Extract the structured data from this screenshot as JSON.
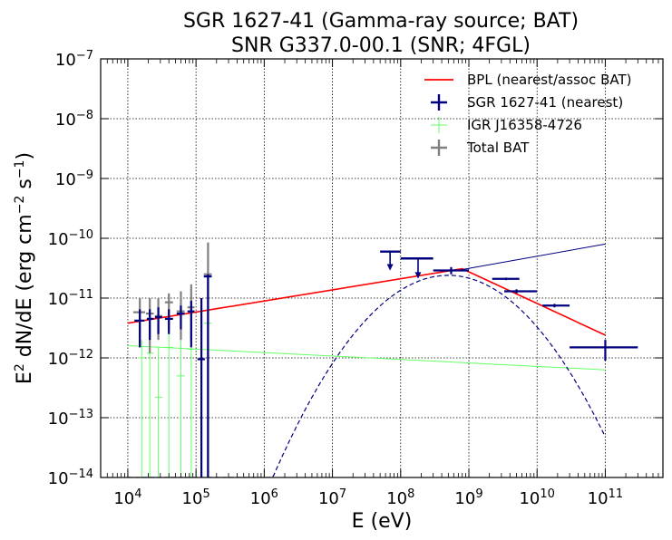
{
  "chart_data": {
    "type": "scatter",
    "title": "SGR 1627-41 (Gamma-ray source; BAT)",
    "subtitle": "SNR G337.0-00.1 (SNR; 4FGL)",
    "xlabel": "E (eV)",
    "ylabel_main": "E",
    "ylabel_sup": "2",
    "ylabel_rest": " dN/dE (erg cm",
    "ylabel_sup2": "−2",
    "ylabel_mid": " s",
    "ylabel_sup3": "−1",
    "ylabel_end": ")",
    "x_scale": "log",
    "y_scale": "log",
    "xlim": [
      4000,
      700000000000
    ],
    "ylim": [
      1e-14,
      1e-07
    ],
    "grid": true,
    "legend_position": "top-right",
    "x_ticks": [
      {
        "value": 10000,
        "base": "10",
        "exp": "4"
      },
      {
        "value": 100000,
        "base": "10",
        "exp": "5"
      },
      {
        "value": 1000000,
        "base": "10",
        "exp": "6"
      },
      {
        "value": 10000000,
        "base": "10",
        "exp": "7"
      },
      {
        "value": 100000000,
        "base": "10",
        "exp": "8"
      },
      {
        "value": 1000000000,
        "base": "10",
        "exp": "9"
      },
      {
        "value": 10000000000,
        "base": "10",
        "exp": "10"
      },
      {
        "value": 100000000000,
        "base": "10",
        "exp": "11"
      }
    ],
    "y_ticks": [
      {
        "value": 1e-14,
        "base": "10",
        "exp": "−14"
      },
      {
        "value": 1e-13,
        "base": "10",
        "exp": "−13"
      },
      {
        "value": 1e-12,
        "base": "10",
        "exp": "−12"
      },
      {
        "value": 1e-11,
        "base": "10",
        "exp": "−11"
      },
      {
        "value": 1e-10,
        "base": "10",
        "exp": "−10"
      },
      {
        "value": 1e-09,
        "base": "10",
        "exp": "−9"
      },
      {
        "value": 1e-08,
        "base": "10",
        "exp": "−8"
      },
      {
        "value": 1e-07,
        "base": "10",
        "exp": "−7"
      }
    ],
    "legend": [
      {
        "label": "BPL (nearest/assoc BAT)",
        "kind": "line",
        "color": "#ff0000"
      },
      {
        "label": "SGR 1627-41 (nearest)",
        "kind": "cross",
        "color": "#000080"
      },
      {
        "label": "IGR J16358-4726",
        "kind": "cross",
        "color": "#66ff66"
      },
      {
        "label": "Total BAT",
        "kind": "cross",
        "color": "#808080"
      }
    ],
    "lines": [
      {
        "name": "BPL (nearest/assoc BAT)",
        "color": "#ff0000",
        "width": 1.6,
        "dash": "",
        "points": [
          [
            10000,
            3.8e-12
          ],
          [
            800000000,
            3.1e-11
          ],
          [
            100000000000,
            2.4e-12
          ]
        ]
      },
      {
        "name": "",
        "color": "#000080",
        "width": 1.0,
        "dash": "",
        "points": [
          [
            800000000,
            3e-11
          ],
          [
            100000000000,
            8e-11
          ]
        ]
      },
      {
        "name": "",
        "color": "#66ff66",
        "width": 1.0,
        "dash": "",
        "points": [
          [
            10000,
            1.6e-12
          ],
          [
            100000000000,
            6.3e-13
          ]
        ]
      }
    ],
    "curve": {
      "color": "#000080",
      "dash": "5,3",
      "width": 1.2,
      "peak_x": 500000000,
      "peak_y": 2.4e-11,
      "width_decades": 1.4,
      "x_from": 10000,
      "x_to": 100000000000
    },
    "series": [
      {
        "name": "IGR J16358-4726",
        "color": "#66ff66",
        "width": 1.0,
        "points": [
          {
            "x": 16000,
            "y": 1e-12,
            "xlo": 14000,
            "xhi": 18000,
            "ylo": 1e-14,
            "yhi": 2e-12
          },
          {
            "x": 21000,
            "y": 1.2e-12,
            "xlo": 19000,
            "xhi": 24000,
            "ylo": 1e-14,
            "yhi": 2.5e-12
          },
          {
            "x": 28000,
            "y": 2.2e-13,
            "xlo": 25000,
            "xhi": 32000,
            "ylo": 1e-14,
            "yhi": 1.5e-12
          },
          {
            "x": 40000,
            "y": 1.5e-12,
            "xlo": 35000,
            "xhi": 46000,
            "ylo": 1e-14,
            "yhi": 3e-12
          },
          {
            "x": 60000,
            "y": 5e-13,
            "xlo": 52000,
            "xhi": 68000,
            "ylo": 1e-14,
            "yhi": 2.5e-12
          },
          {
            "x": 85000,
            "y": 1.4e-12,
            "xlo": 75000,
            "xhi": 95000,
            "ylo": 1e-14,
            "yhi": 4e-12
          },
          {
            "x": 150000,
            "y": 3.8e-12,
            "xlo": 130000,
            "xhi": 170000,
            "ylo": 1e-14,
            "yhi": 2e-11
          }
        ]
      },
      {
        "name": "Total BAT",
        "color": "#808080",
        "width": 2.2,
        "points": [
          {
            "x": 15000,
            "y": 5.8e-12,
            "xlo": 12000,
            "xhi": 18000,
            "ylo": 1.5e-12,
            "yhi": 1e-11
          },
          {
            "x": 21000,
            "y": 5.5e-12,
            "xlo": 18500,
            "xhi": 24000,
            "ylo": 1.2e-12,
            "yhi": 1e-11
          },
          {
            "x": 28000,
            "y": 5e-12,
            "xlo": 25000,
            "xhi": 32000,
            "ylo": 2e-12,
            "yhi": 1e-11
          },
          {
            "x": 40000,
            "y": 8.5e-12,
            "xlo": 35000,
            "xhi": 46000,
            "ylo": 3e-12,
            "yhi": 1.2e-11
          },
          {
            "x": 60000,
            "y": 6e-12,
            "xlo": 52000,
            "xhi": 68000,
            "ylo": 2e-12,
            "yhi": 1.3e-11
          },
          {
            "x": 85000,
            "y": 7e-12,
            "xlo": 75000,
            "xhi": 95000,
            "ylo": 2e-12,
            "yhi": 1.7e-11
          },
          {
            "x": 150000,
            "y": 2.5e-11,
            "xlo": 130000,
            "xhi": 170000,
            "ylo": 1e-14,
            "yhi": 8.5e-11
          }
        ]
      },
      {
        "name": "SGR 1627-41 (nearest)",
        "color": "#000080",
        "width": 2.2,
        "points": [
          {
            "x": 15000,
            "y": 4.2e-12,
            "xlo": 12500,
            "xhi": 17500,
            "ylo": 1.5e-12,
            "yhi": 6.5e-12
          },
          {
            "x": 21000,
            "y": 4.5e-12,
            "xlo": 19000,
            "xhi": 24000,
            "ylo": 2e-12,
            "yhi": 6.5e-12
          },
          {
            "x": 28000,
            "y": 4.8e-12,
            "xlo": 25000,
            "xhi": 32000,
            "ylo": 2.5e-12,
            "yhi": 7e-12
          },
          {
            "x": 40000,
            "y": 4.5e-12,
            "xlo": 35000,
            "xhi": 46000,
            "ylo": 2.5e-12,
            "yhi": 6.5e-12
          },
          {
            "x": 60000,
            "y": 5.5e-12,
            "xlo": 52000,
            "xhi": 68000,
            "ylo": 3e-12,
            "yhi": 7.5e-12
          },
          {
            "x": 85000,
            "y": 6e-12,
            "xlo": 75000,
            "xhi": 95000,
            "ylo": 1.5e-12,
            "yhi": 9e-12
          },
          {
            "x": 120000,
            "y": 9.5e-13,
            "xlo": 105000,
            "xhi": 135000,
            "ylo": 1e-14,
            "yhi": 1e-11
          },
          {
            "x": 150000,
            "y": 2.3e-11,
            "xlo": 130000,
            "xhi": 170000,
            "ylo": 1e-14,
            "yhi": 2.5e-11
          },
          {
            "x": 3500000000,
            "y": 2.1e-11,
            "xlo": 2200000000,
            "xhi": 5500000000,
            "ylo": 2e-11,
            "yhi": 2.2e-11
          },
          {
            "x": 5000000000,
            "y": 1.3e-11,
            "xlo": 3300000000,
            "xhi": 10000000000,
            "ylo": 1.2e-11,
            "yhi": 1.4e-11
          },
          {
            "x": 18000000000,
            "y": 7.5e-12,
            "xlo": 12000000000,
            "xhi": 30000000000,
            "ylo": 7e-12,
            "yhi": 8e-12
          },
          {
            "x": 100000000000,
            "y": 1.5e-12,
            "xlo": 30000000000,
            "xhi": 300000000000,
            "ylo": 9e-13,
            "yhi": 2e-12
          }
        ]
      },
      {
        "name": "SGR 1627-41 (nearest) 2",
        "color": "#000080",
        "width": 2.2,
        "points": [
          {
            "x": 550000000,
            "y": 2.9e-11,
            "xlo": 300000000,
            "xhi": 1000000000,
            "ylo": 2.5e-11,
            "yhi": 3.3e-11
          }
        ]
      }
    ],
    "upper_limits": [
      {
        "x": 70000000,
        "xlo": 50000000,
        "xhi": 100000000,
        "y": 6e-11,
        "arrow_to": 3e-11,
        "color": "#000080"
      },
      {
        "x": 180000000,
        "xlo": 100000000,
        "xhi": 300000000,
        "y": 4.6e-11,
        "arrow_to": 2.2e-11,
        "color": "#000080"
      }
    ]
  }
}
